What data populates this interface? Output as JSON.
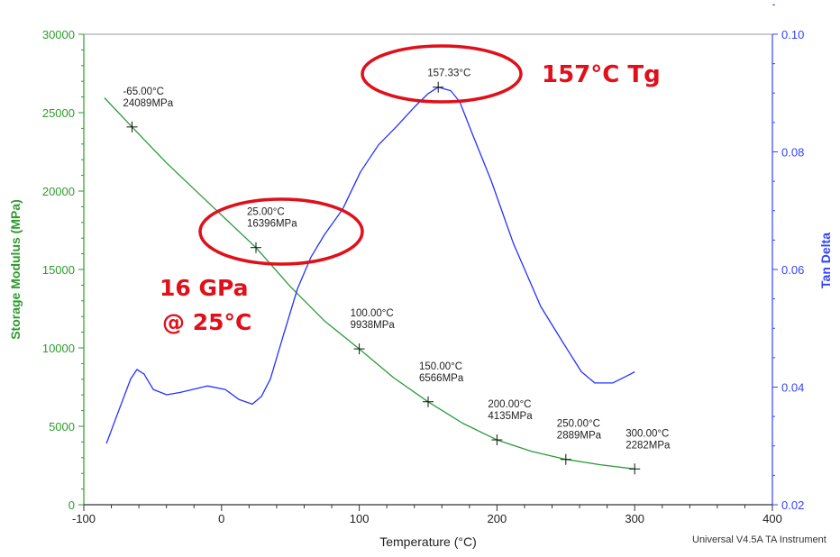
{
  "chart_data": {
    "type": "line",
    "xlabel": "Temperature (°C)",
    "ylabel_left": "Storage Modulus (MPa)",
    "ylabel_right": "Tan Delta",
    "xlim": [
      -100,
      400
    ],
    "ylim_left": [
      0,
      30000
    ],
    "ylim_right": [
      0.02,
      0.1
    ],
    "x_ticks": [
      "-100",
      "0",
      "100",
      "200",
      "300",
      "400"
    ],
    "y_left_ticks": [
      "0",
      "5000",
      "10000",
      "15000",
      "20000",
      "25000",
      "30000"
    ],
    "y_right_ticks": [
      "0.02",
      "0.04",
      "0.06",
      "0.08",
      "0.10"
    ],
    "footer": "Universal V4.5A TA Instrument",
    "colors": {
      "storage": "#2a9a3a",
      "tan": "#2233ff",
      "highlight": "#e0101a"
    },
    "series": [
      {
        "name": "Storage Modulus",
        "axis": "left",
        "x": [
          -85,
          -65,
          -40,
          -10,
          25,
          50,
          75,
          100,
          125,
          150,
          175,
          200,
          225,
          250,
          275,
          300
        ],
        "y": [
          25950,
          24089,
          21800,
          19300,
          16396,
          13900,
          11700,
          9938,
          8100,
          6566,
          5200,
          4135,
          3400,
          2889,
          2550,
          2282
        ]
      },
      {
        "name": "Tan Delta",
        "axis": "right",
        "x": [
          -83.6,
          -75.8,
          -66,
          -61.4,
          -56.2,
          -49.6,
          -39.8,
          -30,
          -10.3,
          2.7,
          12.6,
          22.4,
          28.9,
          35.5,
          45.3,
          55.1,
          64.9,
          74.7,
          87.8,
          100.9,
          114,
          127,
          140,
          150,
          157.33,
          166.4,
          173,
          182.7,
          195.8,
          212,
          231.8,
          248.2,
          261.3,
          271,
          284,
          297,
          300
        ],
        "y": [
          0.0304,
          0.0353,
          0.0414,
          0.043,
          0.0422,
          0.0396,
          0.0387,
          0.0391,
          0.0402,
          0.0396,
          0.0379,
          0.0371,
          0.0384,
          0.0414,
          0.0491,
          0.0567,
          0.0621,
          0.0659,
          0.0702,
          0.0766,
          0.0812,
          0.0843,
          0.0876,
          0.0899,
          0.091,
          0.0904,
          0.0885,
          0.0827,
          0.0751,
          0.0644,
          0.0537,
          0.0475,
          0.0426,
          0.0407,
          0.0407,
          0.0422,
          0.0426
        ]
      }
    ],
    "annotations": [
      {
        "axis": "left",
        "x": -65,
        "y": 24089,
        "line1": "-65.00°C",
        "line2": "24089MPa"
      },
      {
        "axis": "left",
        "x": 25,
        "y": 16396,
        "line1": "25.00°C",
        "line2": "16396MPa"
      },
      {
        "axis": "left",
        "x": 100,
        "y": 9938,
        "line1": "100.00°C",
        "line2": "9938MPa"
      },
      {
        "axis": "left",
        "x": 150,
        "y": 6566,
        "line1": "150.00°C",
        "line2": "6566MPa"
      },
      {
        "axis": "left",
        "x": 200,
        "y": 4135,
        "line1": "200.00°C",
        "line2": "4135MPa"
      },
      {
        "axis": "left",
        "x": 250,
        "y": 2889,
        "line1": "250.00°C",
        "line2": "2889MPa"
      },
      {
        "axis": "left",
        "x": 300,
        "y": 2282,
        "line1": "300.00°C",
        "line2": "2282MPa"
      },
      {
        "axis": "right",
        "x": 157.33,
        "y": 0.091,
        "line1": "157.33°C",
        "line2": ""
      }
    ],
    "callouts": {
      "tg": "157°C Tg",
      "modulus_line1": "16 GPa",
      "modulus_line2": "@ 25°C"
    }
  }
}
